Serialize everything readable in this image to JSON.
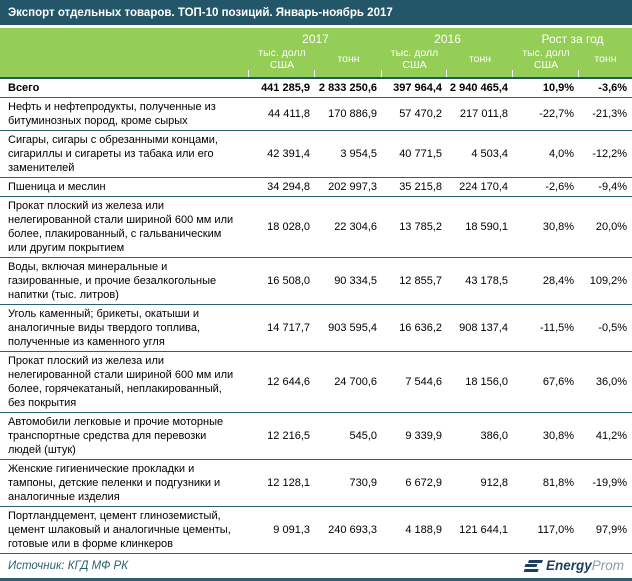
{
  "title": "Экспорт отдельных товаров. ТОП-10 позиций. Январь-ноябрь 2017",
  "chart_data": {
    "type": "table",
    "title": "Экспорт отдельных товаров. ТОП-10 позиций. Январь-ноябрь 2017",
    "column_groups": [
      "2017",
      "2016",
      "Рост за год"
    ],
    "columns": [
      "тыс. долл США",
      "тонн",
      "тыс. долл США",
      "тонн",
      "тыс. долл США",
      "тонн"
    ],
    "rows": [
      {
        "name": "Всего",
        "bold": true,
        "values": [
          "441 285,9",
          "2 833 250,6",
          "397 964,4",
          "2 940 465,4",
          "10,9%",
          "-3,6%"
        ]
      },
      {
        "name": "Нефть и нефтепродукты, полученные из битуминозных пород, кроме сырых",
        "values": [
          "44 411,8",
          "170 886,9",
          "57 470,2",
          "217 011,8",
          "-22,7%",
          "-21,3%"
        ]
      },
      {
        "name": "Сигары, сигары с обрезанными концами, сигариллы и сигареты из табака или его заменителей",
        "values": [
          "42 391,4",
          "3 954,5",
          "40 771,5",
          "4 503,4",
          "4,0%",
          "-12,2%"
        ]
      },
      {
        "name": "Пшеница и меслин",
        "values": [
          "34 294,8",
          "202 997,3",
          "35 215,8",
          "224 170,4",
          "-2,6%",
          "-9,4%"
        ]
      },
      {
        "name": "Прокат плоский из железа или нелегированной стали шириной 600 мм или более, плакированный, с гальваническим или другим покрытием",
        "values": [
          "18 028,0",
          "22 304,6",
          "13 785,2",
          "18 590,1",
          "30,8%",
          "20,0%"
        ]
      },
      {
        "name": "Воды, включая минеральные и газированные, и прочие безалкогольные напитки (тыс. литров)",
        "values": [
          "16 508,0",
          "90 334,5",
          "12 855,7",
          "43 178,5",
          "28,4%",
          "109,2%"
        ]
      },
      {
        "name": "Уголь каменный; брикеты, окатыши и аналогичные виды твердого топлива, полученные из каменного угля",
        "values": [
          "14 717,7",
          "903 595,4",
          "16 636,2",
          "908 137,4",
          "-11,5%",
          "-0,5%"
        ]
      },
      {
        "name": "Прокат плоский из железа или нелегированной стали шириной 600 мм или более, горячекатаный, неплакированный, без  покрытия",
        "values": [
          "12 644,6",
          "24 700,6",
          "7 544,6",
          "18 156,0",
          "67,6%",
          "36,0%"
        ]
      },
      {
        "name": "Автомобили легковые и прочие моторные транспортные средства для перевозки людей (штук)",
        "values": [
          "12 216,5",
          "545,0",
          "9 339,9",
          "386,0",
          "30,8%",
          "41,2%"
        ]
      },
      {
        "name": "Женские гигиенические прокладки и тампоны, детские пеленки и подгузники и аналогичные изделия",
        "values": [
          "12 128,1",
          "730,9",
          "6 672,9",
          "912,8",
          "81,8%",
          "-19,9%"
        ]
      },
      {
        "name": "Портландцемент, цемент глиноземистый, цемент шлаковый и аналогичные цементы, готовые или в форме клинкеров",
        "values": [
          "9 091,3",
          "240 693,3",
          "4 188,9",
          "121 644,1",
          "117,0%",
          "97,9%"
        ]
      }
    ]
  },
  "footer": {
    "source": "Источник: КГД МФ РК",
    "logo": {
      "bold_part": "Energy",
      "light_part": "Prom"
    }
  },
  "colors": {
    "title_bar": "#24566a",
    "header_green": "#94ce57",
    "row_border": "#2d6172",
    "logo_navy": "#1d3e5f",
    "logo_gray": "#8b9cab"
  }
}
